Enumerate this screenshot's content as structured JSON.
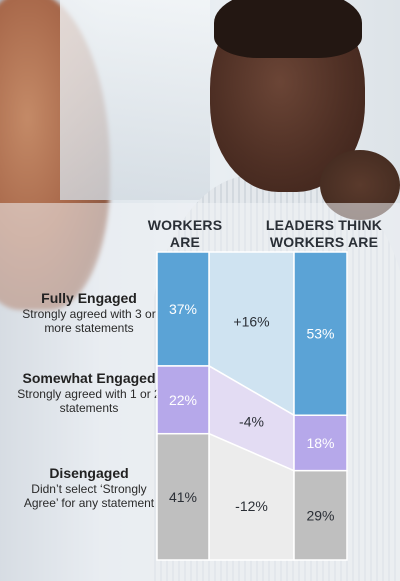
{
  "headers": {
    "workers": "WORKERS ARE",
    "leaders": "LEADERS THINK WORKERS ARE"
  },
  "rows": [
    {
      "name": "Fully Engaged",
      "desc": "Strongly agreed with 3 or more statements"
    },
    {
      "name": "Somewhat Engaged",
      "desc": "Strongly agreed with 1 or 2 statements"
    },
    {
      "name": "Disengaged",
      "desc": "Didn’t select ‘Strongly Agree’ for any statement"
    }
  ],
  "colors": {
    "fully": "#5ba3d6",
    "somewhat": "#b6a8ea",
    "disengaged": "#bfbfbf",
    "diff_fully": "#cfe3f1",
    "diff_somewhat": "#e3dcf3",
    "diff_disengaged": "#ececec"
  },
  "chart_data": {
    "type": "bar",
    "categories": [
      "WORKERS ARE",
      "LEADERS THINK WORKERS ARE"
    ],
    "series": [
      {
        "name": "Fully Engaged",
        "values": [
          37,
          53
        ],
        "labels": [
          "37%",
          "53%"
        ],
        "difference": "+16%"
      },
      {
        "name": "Somewhat Engaged",
        "values": [
          22,
          18
        ],
        "labels": [
          "22%",
          "18%"
        ],
        "difference": "-4%"
      },
      {
        "name": "Disengaged",
        "values": [
          41,
          29
        ],
        "labels": [
          "41%",
          "29%"
        ],
        "difference": "-12%"
      }
    ],
    "stacked": true,
    "ylim": [
      0,
      100
    ]
  }
}
